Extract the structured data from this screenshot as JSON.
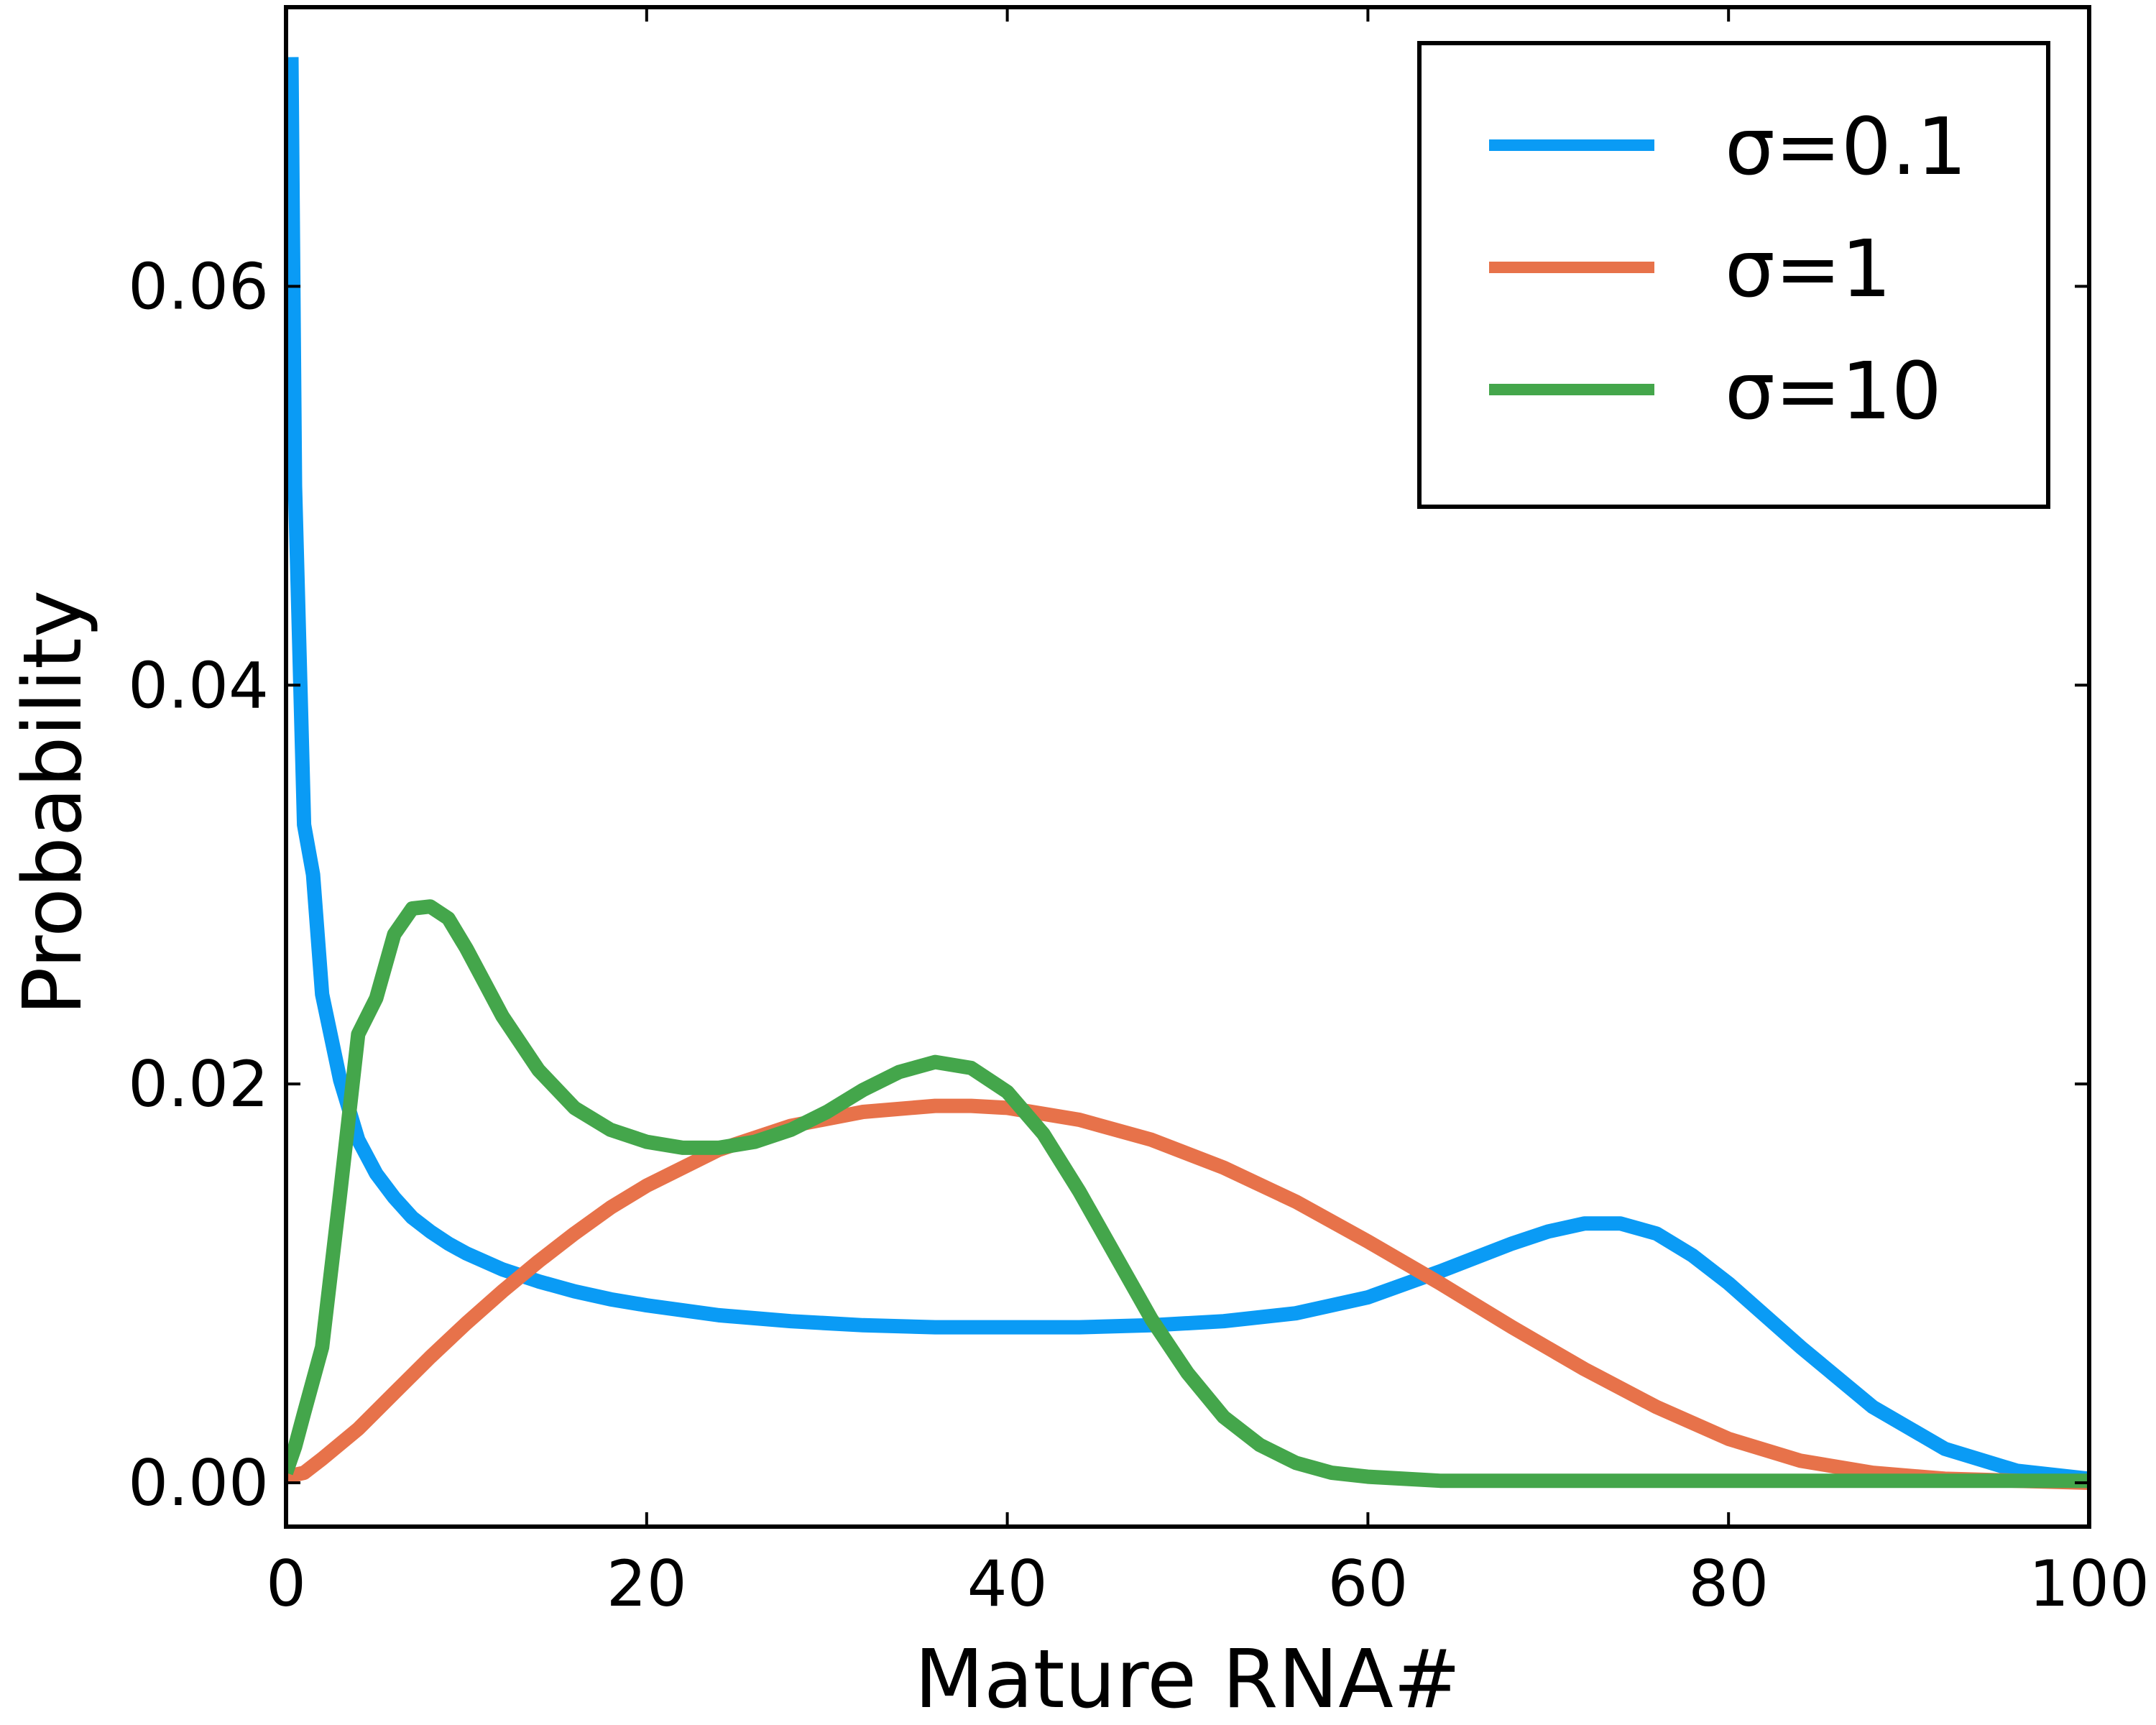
{
  "chart_data": {
    "type": "line",
    "xlabel": "Mature RNA#",
    "ylabel": "Probability",
    "xlim": [
      0,
      100
    ],
    "ylim": [
      -0.0022,
      0.074
    ],
    "x_ticks": [
      0,
      20,
      40,
      60,
      80,
      100
    ],
    "x_tick_labels": [
      "0",
      "20",
      "40",
      "60",
      "80",
      "100"
    ],
    "y_ticks": [
      0,
      0.02,
      0.04,
      0.06
    ],
    "y_tick_labels": [
      "0.00",
      "0.02",
      "0.04",
      "0.06"
    ],
    "grid": false,
    "legend_position": "top-right",
    "series": [
      {
        "name": "σ=0.1",
        "color": "#0a9bf5",
        "x": [
          0.3,
          0.5,
          1,
          1.5,
          2,
          3,
          4,
          5,
          6,
          7,
          8,
          9,
          10,
          12,
          14,
          16,
          18,
          20,
          24,
          28,
          32,
          36,
          38,
          40,
          44,
          48,
          52,
          56,
          60,
          64,
          68,
          70,
          72,
          74,
          76,
          78,
          80,
          84,
          88,
          92,
          96,
          100
        ],
        "y": [
          0.0715,
          0.05,
          0.033,
          0.0305,
          0.0245,
          0.0202,
          0.0172,
          0.0155,
          0.0143,
          0.0133,
          0.0126,
          0.012,
          0.0115,
          0.0107,
          0.0101,
          0.0096,
          0.0092,
          0.0089,
          0.0084,
          0.0081,
          0.0079,
          0.0078,
          0.0078,
          0.0078,
          0.0078,
          0.0079,
          0.0081,
          0.0085,
          0.0093,
          0.0106,
          0.012,
          0.0126,
          0.013,
          0.013,
          0.0125,
          0.0114,
          0.01,
          0.0068,
          0.0038,
          0.0017,
          0.0006,
          0.0002
        ]
      },
      {
        "name": "σ=1",
        "color": "#e7724a",
        "x": [
          0,
          1,
          2,
          4,
          6,
          8,
          10,
          12,
          14,
          16,
          18,
          20,
          24,
          28,
          32,
          36,
          38,
          40,
          44,
          48,
          52,
          56,
          60,
          64,
          68,
          72,
          76,
          80,
          84,
          88,
          92,
          96,
          100
        ],
        "y": [
          0.0003,
          0.0005,
          0.0012,
          0.0027,
          0.0045,
          0.0063,
          0.008,
          0.0096,
          0.0111,
          0.0125,
          0.0138,
          0.0149,
          0.0167,
          0.0179,
          0.0186,
          0.0189,
          0.0189,
          0.0188,
          0.0182,
          0.0172,
          0.0158,
          0.0141,
          0.0121,
          0.01,
          0.0078,
          0.0057,
          0.0038,
          0.0022,
          0.0011,
          0.0005,
          0.0002,
          0.0001,
          0.0
        ]
      },
      {
        "name": "σ=10",
        "color": "#44a64b",
        "x": [
          0,
          0.5,
          1,
          2,
          3,
          4,
          5,
          6,
          7,
          8,
          9,
          10,
          11,
          12,
          14,
          16,
          18,
          20,
          22,
          24,
          26,
          28,
          30,
          32,
          34,
          36,
          38,
          40,
          42,
          44,
          46,
          48,
          50,
          52,
          54,
          56,
          58,
          60,
          62,
          64,
          68,
          72,
          80,
          90,
          100
        ],
        "y": [
          0.0005,
          0.0018,
          0.0035,
          0.0068,
          0.0145,
          0.0225,
          0.0243,
          0.0275,
          0.0288,
          0.0289,
          0.0283,
          0.0268,
          0.0251,
          0.0234,
          0.0207,
          0.0188,
          0.0177,
          0.0171,
          0.0168,
          0.0168,
          0.0171,
          0.0177,
          0.0186,
          0.0197,
          0.0206,
          0.0211,
          0.0208,
          0.0196,
          0.0175,
          0.0146,
          0.0114,
          0.0082,
          0.0055,
          0.0033,
          0.0019,
          0.001,
          0.0005,
          0.0003,
          0.0002,
          0.0001,
          0.0001,
          0.0001,
          0.0001,
          0.0001,
          0.0001
        ]
      }
    ]
  }
}
